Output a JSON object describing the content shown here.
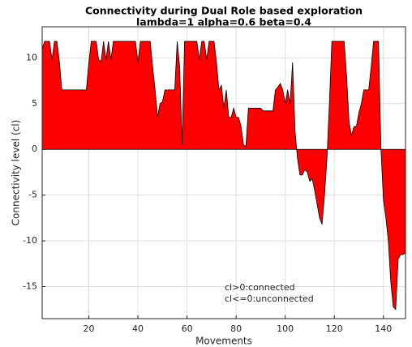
{
  "chart_data": {
    "type": "area",
    "title": "Connectivity during Dual Role based exploration",
    "subtitle": "lambda=1 alpha=0.6 beta=0.4",
    "x_label": "Movements",
    "y_label": "Connectivity level (cl)",
    "annotations": [
      "cl>0:connected",
      "cl<=0:unconnected"
    ],
    "color": "#ff0000",
    "edge_color": "#000000",
    "grid": true,
    "xlim": [
      1,
      149
    ],
    "ylim": [
      -18.5,
      13.4
    ],
    "xticks": [
      20,
      40,
      60,
      80,
      100,
      120,
      140
    ],
    "yticks": [
      -15,
      -10,
      -5,
      0,
      5,
      10
    ],
    "x": [
      1,
      2,
      3,
      4,
      5,
      6,
      7,
      8,
      9,
      10,
      11,
      12,
      13,
      14,
      15,
      16,
      17,
      18,
      19,
      20,
      21,
      22,
      23,
      24,
      25,
      26,
      27,
      28,
      29,
      30,
      31,
      32,
      33,
      34,
      35,
      36,
      37,
      38,
      39,
      40,
      41,
      42,
      43,
      44,
      45,
      46,
      47,
      48,
      49,
      50,
      51,
      52,
      53,
      54,
      55,
      56,
      57,
      58,
      59,
      60,
      61,
      62,
      63,
      64,
      65,
      66,
      67,
      68,
      69,
      70,
      71,
      72,
      73,
      74,
      75,
      76,
      77,
      78,
      79,
      80,
      81,
      82,
      83,
      84,
      85,
      86,
      87,
      88,
      89,
      90,
      91,
      92,
      93,
      94,
      95,
      96,
      97,
      98,
      99,
      100,
      101,
      102,
      103,
      104,
      105,
      106,
      107,
      108,
      109,
      110,
      111,
      112,
      113,
      114,
      115,
      116,
      117,
      118,
      119,
      120,
      121,
      122,
      123,
      124,
      125,
      126,
      127,
      128,
      129,
      130,
      131,
      132,
      133,
      134,
      135,
      136,
      137,
      138,
      139,
      140,
      141,
      142,
      143,
      144,
      145,
      146,
      147,
      148,
      149
    ],
    "values": [
      11,
      11.8,
      11.8,
      11.8,
      9.8,
      11.8,
      11.8,
      9.6,
      6.5,
      6.5,
      6.5,
      6.5,
      6.5,
      6.5,
      6.5,
      6.5,
      6.5,
      6.5,
      6.5,
      9.5,
      11.8,
      11.8,
      11.8,
      9.8,
      9.6,
      11.8,
      9.8,
      11.8,
      9.8,
      11.8,
      11.8,
      11.8,
      11.8,
      11.8,
      11.8,
      11.8,
      11.8,
      11.8,
      11.8,
      9.5,
      11.8,
      11.8,
      11.8,
      11.8,
      11.8,
      9,
      6.5,
      3.5,
      5,
      5.2,
      6.5,
      6.5,
      6.5,
      6.5,
      6.5,
      11.8,
      9,
      0.5,
      11.8,
      11.8,
      11.8,
      11.8,
      11.8,
      11.8,
      9.8,
      11.8,
      11.8,
      9.8,
      11.8,
      11.8,
      11.8,
      9.5,
      6.5,
      7,
      4.5,
      6.5,
      3.5,
      3.5,
      4.5,
      3.5,
      3.5,
      2.5,
      0.5,
      0.3,
      4.5,
      4.5,
      4.5,
      4.5,
      4.5,
      4.5,
      4.2,
      4.2,
      4.2,
      4.2,
      4.2,
      6.5,
      6.8,
      7.2,
      6.5,
      5,
      6.5,
      5,
      9.5,
      2,
      -1,
      -2.8,
      -2.8,
      -2.2,
      -2.5,
      -3.5,
      -3.2,
      -4.5,
      -6,
      -7.5,
      -8.2,
      -5,
      -1,
      5,
      11.8,
      11.8,
      11.8,
      11.8,
      11.8,
      11.8,
      8,
      3,
      1.5,
      2.5,
      2.5,
      4,
      5,
      6.5,
      6.5,
      6.5,
      9,
      11.8,
      11.8,
      11.8,
      0,
      -5.5,
      -7.5,
      -10,
      -14.5,
      -17.2,
      -17.5,
      -12,
      -11.5,
      -11.5,
      -11.3
    ]
  }
}
